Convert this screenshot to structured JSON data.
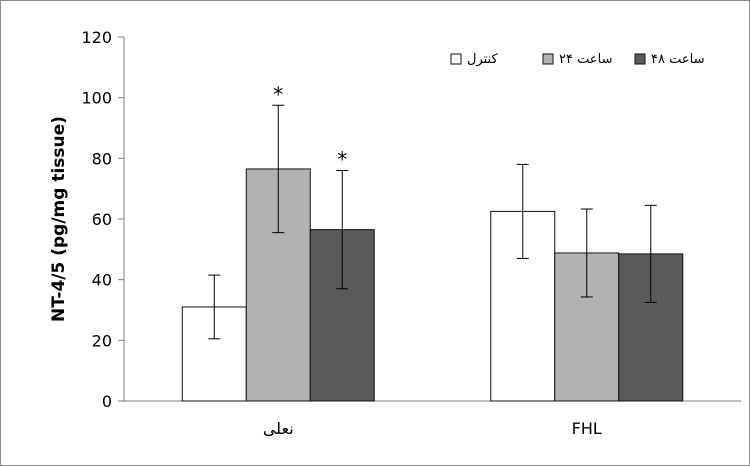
{
  "chart_data": {
    "type": "bar",
    "categories": [
      "نعلی",
      "FHL"
    ],
    "series": [
      {
        "name": "کنترل",
        "values": [
          31,
          62.5
        ],
        "errors": [
          10.5,
          15.5
        ],
        "color": "#ffffff"
      },
      {
        "name": "۲۴ ساعت",
        "values": [
          76.5,
          48.8
        ],
        "errors": [
          21,
          14.5
        ],
        "color": "#b2b2b4"
      },
      {
        "name": "۴۸ ساعت",
        "values": [
          56.5,
          48.5
        ],
        "errors": [
          19.5,
          16
        ],
        "color": "#5a5a5c"
      }
    ],
    "significance": [
      {
        "category": 0,
        "series": 1,
        "label": "*"
      },
      {
        "category": 0,
        "series": 2,
        "label": "*"
      }
    ],
    "ylabel": "NT-4/5 (pg/mg tissue)",
    "ylim": [
      0,
      120
    ],
    "yticks": [
      0,
      20,
      40,
      60,
      80,
      100,
      120
    ],
    "grid": false,
    "legend_position": "top-right"
  }
}
